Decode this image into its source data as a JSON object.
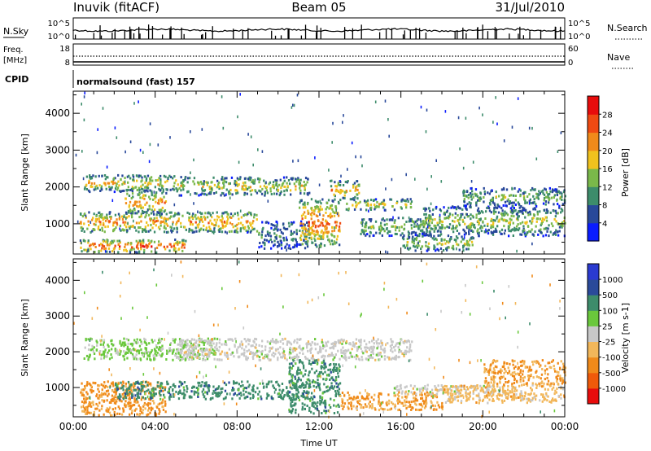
{
  "header": {
    "station": "Inuvik (fitACF)",
    "beam": "Beam 05",
    "date": "31/Jul/2010"
  },
  "status_panels": {
    "nsky_label": "N.Sky",
    "nsky_ticks": [
      "10^5",
      "10^0"
    ],
    "nsearch_label": "N.Search",
    "nsearch_ticks": [
      "10^5",
      "10^0"
    ],
    "freq_label": "Freq.",
    "freq_unit": "[MHz]",
    "freq_ticks": [
      "18",
      "8"
    ],
    "nave_label": "Nave",
    "nave_ticks": [
      "60",
      "0"
    ],
    "cpid_label": "CPID",
    "cpid_value": "normalsound (fast) 157"
  },
  "chart_data": [
    {
      "type": "heatmap",
      "name": "power",
      "ylabel": "Slant Range [km]",
      "ylim": [
        180,
        4600
      ],
      "yticks": [
        1000,
        2000,
        3000,
        4000
      ],
      "xlim": [
        0,
        24
      ],
      "colorbar": {
        "label": "Power [dB]",
        "range": [
          0,
          32
        ],
        "ticks": [
          4,
          8,
          12,
          16,
          20,
          24,
          28
        ],
        "colors": [
          "#0a1cff",
          "#28489a",
          "#3d8c6b",
          "#7ab84a",
          "#f0c21e",
          "#f08a1a",
          "#ef4a12",
          "#e80c0c"
        ]
      },
      "bands": [
        {
          "t0": 0.3,
          "t1": 5.5,
          "r0": 250,
          "r1": 600,
          "value": 26
        },
        {
          "t0": 0.3,
          "t1": 9.0,
          "r0": 800,
          "r1": 1350,
          "value": 22
        },
        {
          "t0": 0.5,
          "t1": 5.0,
          "r0": 1900,
          "r1": 2350,
          "value": 18
        },
        {
          "t0": 2.5,
          "t1": 4.5,
          "r0": 1300,
          "r1": 1900,
          "value": 22
        },
        {
          "t0": 5.0,
          "t1": 11.5,
          "r0": 1800,
          "r1": 2300,
          "value": 17
        },
        {
          "t0": 9.0,
          "t1": 11.5,
          "r0": 350,
          "r1": 1100,
          "value": 10
        },
        {
          "t0": 11.0,
          "t1": 13.0,
          "r0": 400,
          "r1": 1700,
          "value": 24
        },
        {
          "t0": 12.5,
          "t1": 14.0,
          "r0": 1700,
          "r1": 2200,
          "value": 20
        },
        {
          "t0": 13.3,
          "t1": 16.5,
          "r0": 1400,
          "r1": 1700,
          "value": 18
        },
        {
          "t0": 14.0,
          "t1": 17.5,
          "r0": 700,
          "r1": 1200,
          "value": 14
        },
        {
          "t0": 16.0,
          "t1": 19.5,
          "r0": 300,
          "r1": 700,
          "value": 16
        },
        {
          "t0": 17.0,
          "t1": 24.0,
          "r0": 700,
          "r1": 1500,
          "value": 15
        },
        {
          "t0": 19.0,
          "t1": 24.0,
          "r0": 1500,
          "r1": 2000,
          "value": 13
        }
      ]
    },
    {
      "type": "heatmap",
      "name": "velocity",
      "ylabel": "Slant Range [km]",
      "xlabel": "Time UT",
      "ylim": [
        180,
        4600
      ],
      "yticks": [
        1000,
        2000,
        3000,
        4000
      ],
      "xlim": [
        0,
        24
      ],
      "xticks": [
        "00:00",
        "04:00",
        "08:00",
        "12:00",
        "16:00",
        "20:00",
        "00:00"
      ],
      "colorbar": {
        "label": "Velocity [m s-1]",
        "ticks": [
          "-1000",
          "-500",
          "-100",
          "-25",
          "25",
          "100",
          "500",
          "1000"
        ],
        "colors": [
          "#e80c0c",
          "#ef5a0a",
          "#f08a1a",
          "#f2b75a",
          "#c8c8c8",
          "#6ac83c",
          "#3d8c6b",
          "#2a4a9a",
          "#2a3ad0"
        ]
      },
      "bands": [
        {
          "t0": 0.3,
          "t1": 4.5,
          "r0": 250,
          "r1": 1200,
          "value": -150
        },
        {
          "t0": 2.0,
          "t1": 11.0,
          "r0": 700,
          "r1": 1200,
          "value": 300
        },
        {
          "t0": 0.5,
          "t1": 7.0,
          "r0": 1800,
          "r1": 2400,
          "value": 40
        },
        {
          "t0": 5.0,
          "t1": 16.5,
          "r0": 1800,
          "r1": 2400,
          "value": 0
        },
        {
          "t0": 10.5,
          "t1": 13.0,
          "r0": 300,
          "r1": 1800,
          "value": 300
        },
        {
          "t0": 13.0,
          "t1": 18.0,
          "r0": 400,
          "r1": 900,
          "value": -120
        },
        {
          "t0": 15.5,
          "t1": 21.0,
          "r0": 850,
          "r1": 1100,
          "value": 0
        },
        {
          "t0": 18.0,
          "t1": 24.0,
          "r0": 600,
          "r1": 1100,
          "value": -60
        },
        {
          "t0": 20.0,
          "t1": 24.0,
          "r0": 1100,
          "r1": 1800,
          "value": -120
        }
      ]
    }
  ]
}
